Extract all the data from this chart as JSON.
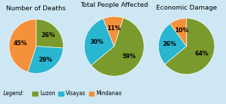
{
  "charts": [
    {
      "title": "Number of Deaths",
      "values": [
        26,
        29,
        45
      ],
      "labels": [
        "26%",
        "29%",
        "45%"
      ],
      "colors": [
        "#7a9a2e",
        "#29b6d0",
        "#f5913a"
      ],
      "startangle": 90
    },
    {
      "title": "Total People Affected",
      "values": [
        59,
        30,
        11
      ],
      "labels": [
        "59%",
        "30%",
        "11%"
      ],
      "colors": [
        "#7a9a2e",
        "#29b6d0",
        "#f5913a"
      ],
      "startangle": 72
    },
    {
      "title": "Economic Damage",
      "values": [
        64,
        26,
        10
      ],
      "labels": [
        "64%",
        "26%",
        "10%"
      ],
      "colors": [
        "#7a9a2e",
        "#29b6d0",
        "#f5913a"
      ],
      "startangle": 90
    }
  ],
  "legend_labels": [
    "Luzon",
    "Visayas",
    "Mindanao"
  ],
  "legend_colors": [
    "#7a9a2e",
    "#29b6d0",
    "#f5913a"
  ],
  "background_color": "#cde8f4",
  "title_fontsize": 6.8,
  "label_fontsize": 6.0
}
